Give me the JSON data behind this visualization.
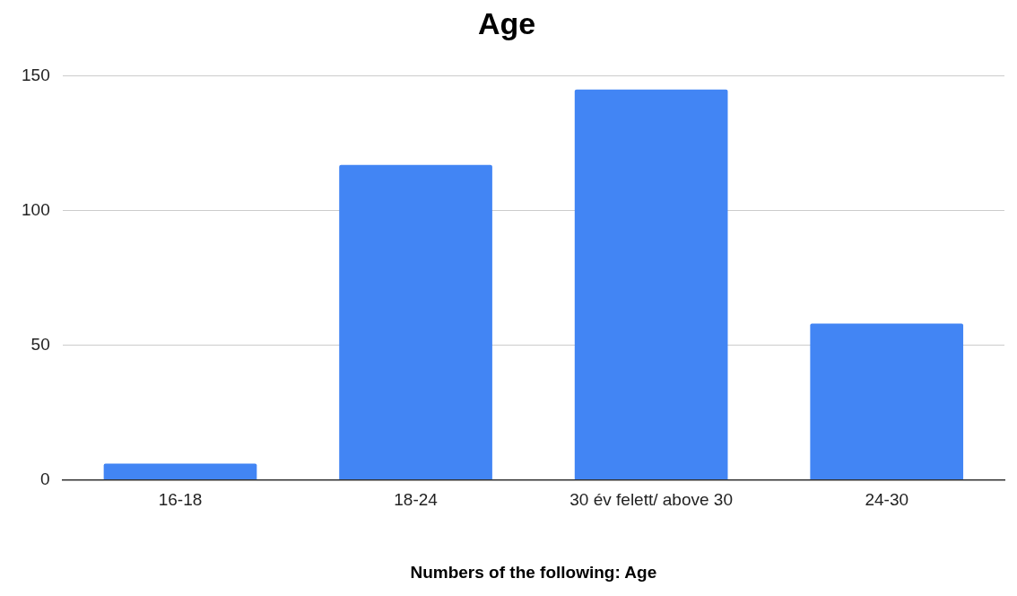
{
  "chart_data": {
    "type": "bar",
    "title": "Age",
    "xlabel": "Numbers of the following: Age",
    "categories": [
      "16-18",
      "18-24",
      "30 év felett/ above 30",
      "24-30"
    ],
    "values": [
      6,
      117,
      145,
      58
    ],
    "color": "#4285f4",
    "ylim": [
      0,
      150
    ],
    "yticks": [
      0,
      50,
      100,
      150
    ],
    "grid": "y",
    "legend": false
  }
}
